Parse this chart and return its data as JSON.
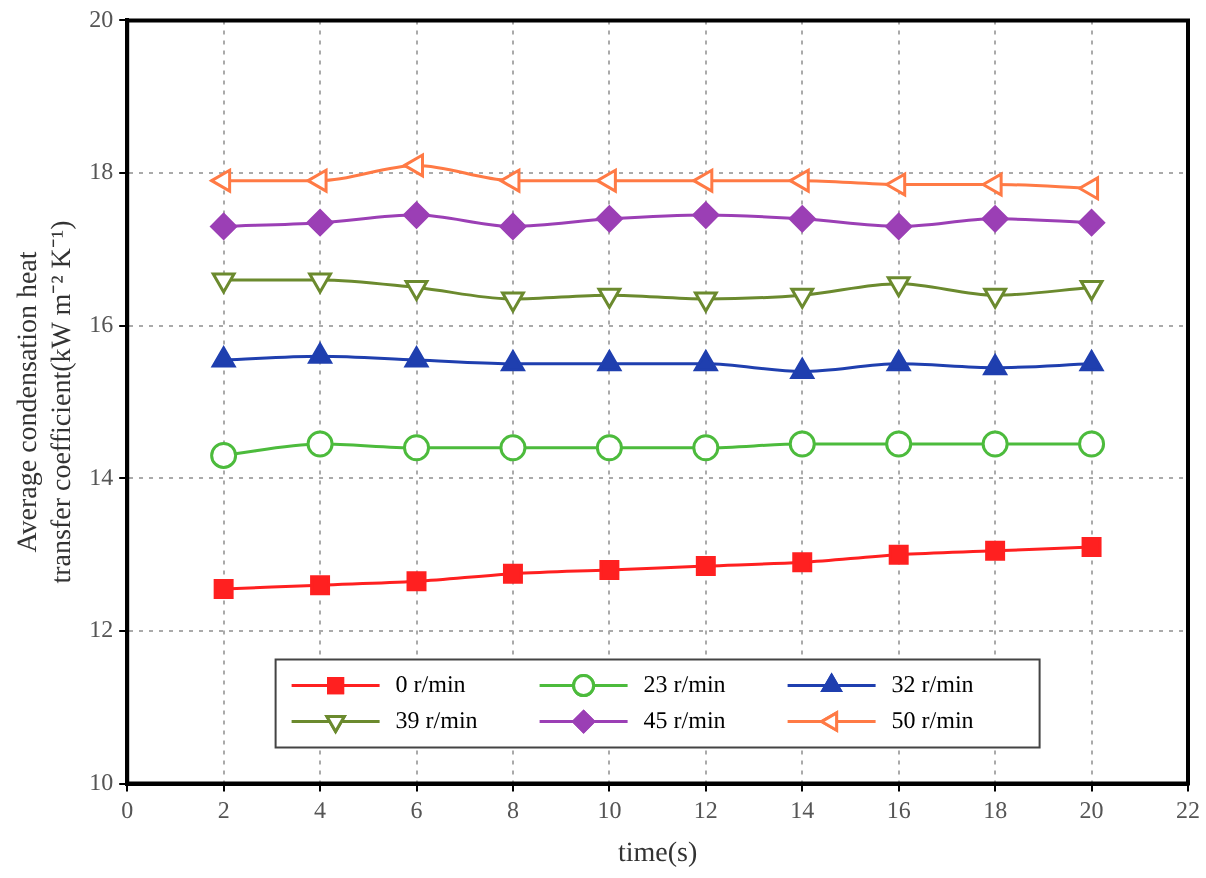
{
  "chart_data": {
    "type": "line",
    "xlabel": "time(s)",
    "ylabel": "Average condensation heat transfer coefficient(kW m⁻² K⁻¹)",
    "x": [
      2,
      4,
      6,
      8,
      10,
      12,
      14,
      16,
      18,
      20
    ],
    "series": [
      {
        "name": "0 r/min",
        "color": "#ff2020",
        "marker": "square",
        "values": [
          12.55,
          12.6,
          12.65,
          12.75,
          12.8,
          12.85,
          12.9,
          13.0,
          13.05,
          13.1
        ]
      },
      {
        "name": "23 r/min",
        "color": "#4cbb3c",
        "marker": "circle",
        "values": [
          14.3,
          14.45,
          14.4,
          14.4,
          14.4,
          14.4,
          14.45,
          14.45,
          14.45,
          14.45
        ]
      },
      {
        "name": "32 r/min",
        "color": "#1f3faf",
        "marker": "triangle",
        "values": [
          15.55,
          15.6,
          15.55,
          15.5,
          15.5,
          15.5,
          15.4,
          15.5,
          15.45,
          15.5
        ]
      },
      {
        "name": "39 r/min",
        "color": "#6b8a2e",
        "marker": "triangle-down",
        "values": [
          16.6,
          16.6,
          16.5,
          16.35,
          16.4,
          16.35,
          16.4,
          16.55,
          16.4,
          16.5
        ]
      },
      {
        "name": "45 r/min",
        "color": "#9b3fb5",
        "marker": "diamond",
        "values": [
          17.3,
          17.35,
          17.45,
          17.3,
          17.4,
          17.45,
          17.4,
          17.3,
          17.4,
          17.35
        ]
      },
      {
        "name": "50 r/min",
        "color": "#ff7a45",
        "marker": "triangle-left",
        "values": [
          17.9,
          17.9,
          18.1,
          17.9,
          17.9,
          17.9,
          17.9,
          17.85,
          17.85,
          17.8
        ]
      }
    ],
    "xlim": [
      0,
      22
    ],
    "xticks": [
      0,
      2,
      4,
      6,
      8,
      10,
      12,
      14,
      16,
      18,
      20,
      22
    ],
    "ylim": [
      10,
      20
    ],
    "yticks": [
      10,
      12,
      14,
      16,
      18,
      20
    ],
    "grid": true,
    "legend": "bottom",
    "line_style": "solid"
  }
}
